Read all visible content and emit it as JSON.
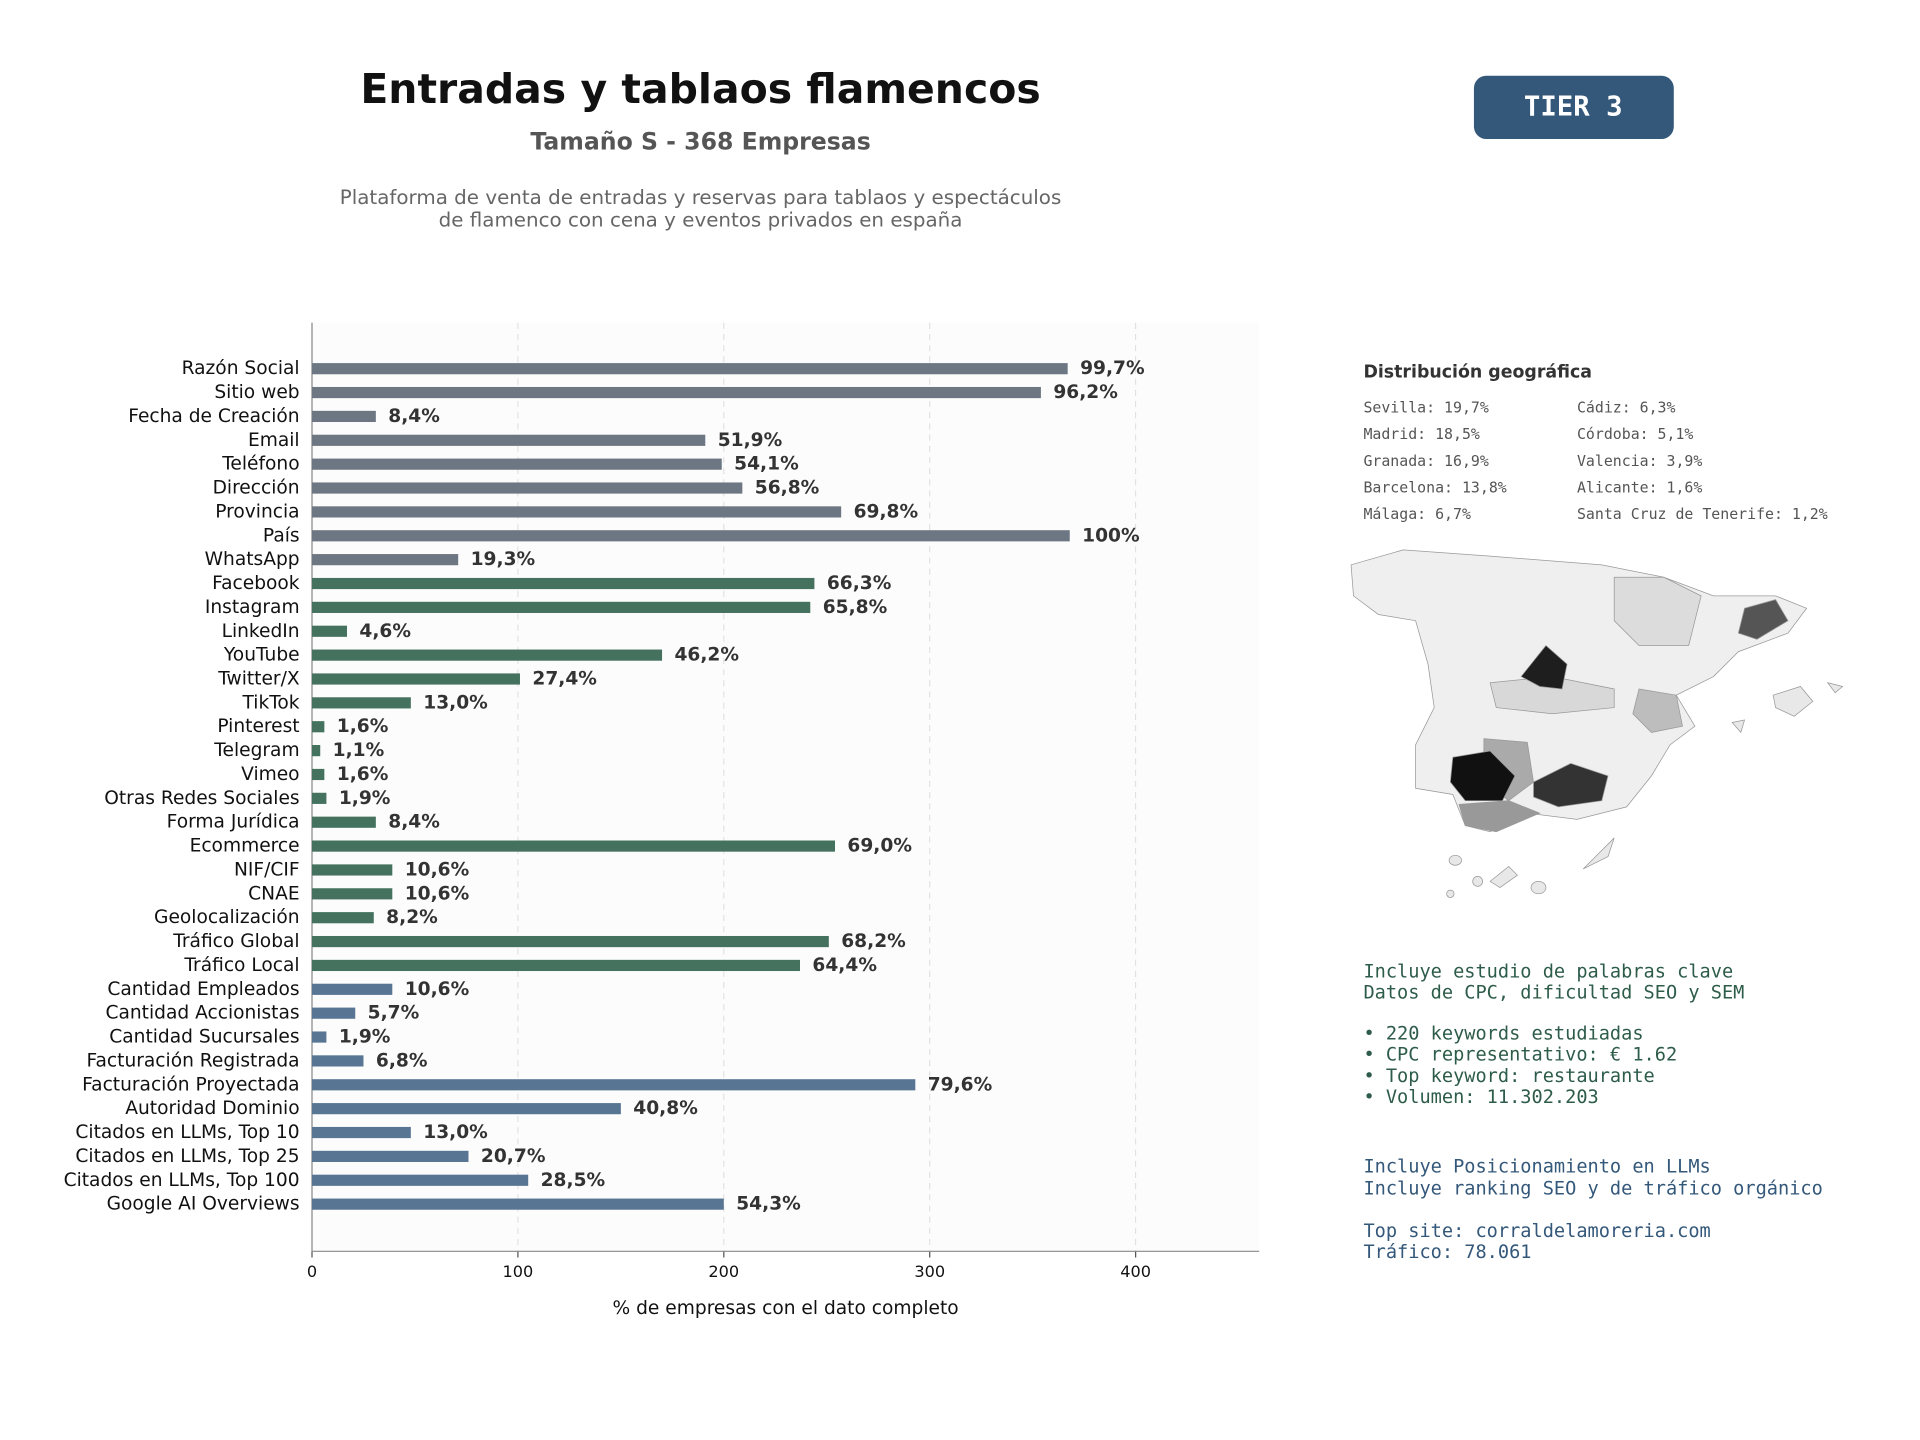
{
  "chart_data": {
    "type": "barh",
    "title": "Entradas y tablaos flamencos",
    "subtitle": "Tamaño S - 368 Empresas",
    "description": [
      "Plataforma de venta de entradas y reservas para tablaos y espectáculos",
      "de flamenco con cena y eventos privados en españa"
    ],
    "badge": "TIER 3",
    "xlabel": "% de empresas con el dato completo",
    "categories": [
      "Razón Social",
      "Sitio web",
      "Fecha de Creación",
      "Email",
      "Teléfono",
      "Dirección",
      "Provincia",
      "País",
      "WhatsApp",
      "Facebook",
      "Instagram",
      "LinkedIn",
      "YouTube",
      "Twitter/X",
      "TikTok",
      "Pinterest",
      "Telegram",
      "Vimeo",
      "Otras Redes Sociales",
      "Forma Jurídica",
      "Ecommerce",
      "NIF/CIF",
      "CNAE",
      "Geolocalización",
      "Tráfico Global",
      "Tráfico Local",
      "Cantidad Empleados",
      "Cantidad Accionistas",
      "Cantidad Sucursales",
      "Facturación Registrada",
      "Facturación Proyectada",
      "Autoridad Dominio",
      "Citados en LLMs, Top 10",
      "Citados en LLMs, Top 25",
      "Citados en LLMs, Top 100",
      "Google AI Overviews"
    ],
    "values": [
      367,
      354,
      31,
      191,
      199,
      209,
      257,
      368,
      71,
      244,
      242,
      17,
      170,
      101,
      48,
      6,
      4,
      6,
      7,
      31,
      254,
      39,
      39,
      30,
      251,
      237,
      39,
      21,
      7,
      25,
      293,
      150,
      48,
      76,
      105,
      200
    ],
    "value_labels": [
      "99,7%",
      "96,2%",
      "8,4%",
      "51,9%",
      "54,1%",
      "56,8%",
      "69,8%",
      "100%",
      "19,3%",
      "66,3%",
      "65,8%",
      "4,6%",
      "46,2%",
      "27,4%",
      "13,0%",
      "1,6%",
      "1,1%",
      "1,6%",
      "1,9%",
      "8,4%",
      "69,0%",
      "10,6%",
      "10,6%",
      "8,2%",
      "68,2%",
      "64,4%",
      "10,6%",
      "5,7%",
      "1,9%",
      "6,8%",
      "79,6%",
      "40,8%",
      "13,0%",
      "20,7%",
      "28,5%",
      "54,3%"
    ],
    "colors": [
      "#6c7783",
      "#6c7783",
      "#6c7783",
      "#6c7783",
      "#6c7783",
      "#6c7783",
      "#6c7783",
      "#6c7783",
      "#6c7783",
      "#44725f",
      "#44725f",
      "#44725f",
      "#44725f",
      "#44725f",
      "#44725f",
      "#44725f",
      "#44725f",
      "#44725f",
      "#44725f",
      "#44725f",
      "#44725f",
      "#44725f",
      "#44725f",
      "#44725f",
      "#44725f",
      "#44725f",
      "#587693",
      "#587693",
      "#587693",
      "#587693",
      "#587693",
      "#587693",
      "#587693",
      "#587693",
      "#587693",
      "#587693"
    ],
    "xlim": [
      0,
      460
    ],
    "xticks": [
      0,
      100,
      200,
      300,
      400
    ],
    "grid": true,
    "geo_title": "Distribución geográfica",
    "geo_items": [
      "Sevilla: 19,7%",
      "Madrid: 18,5%",
      "Granada: 16,9%",
      "Barcelona: 13,8%",
      "Málaga: 6,7%",
      "Cádiz: 6,3%",
      "Córdoba: 5,1%",
      "Valencia: 3,9%",
      "Alicante: 1,6%",
      "Santa Cruz de Tenerife: 1,2%"
    ],
    "seo_lines": [
      "Incluye estudio de palabras clave",
      "Datos de CPC, dificultad SEO y SEM",
      "• 220 keywords estudiadas",
      "• CPC representativo: € 1.62",
      "• Top keyword: restaurante",
      "• Volumen: 11.302.203"
    ],
    "llm_lines": [
      "Incluye Posicionamiento en LLMs",
      "Incluye ranking SEO y de tráfico orgánico",
      "Top site: corraldelamoreria.com",
      "Tráfico: 78.061"
    ]
  }
}
